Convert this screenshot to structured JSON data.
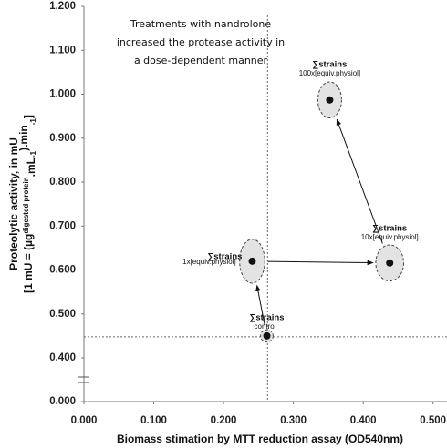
{
  "chart_data": {
    "type": "scatter",
    "xlabel": "Biomass stimation by MTT reduction assay (OD540nm)",
    "ylabel": [
      "Proteolytic activity, in mU",
      [
        "[1 mU = (µg",
        "digested protein",
        ".mL",
        "-1",
        ").min",
        "-1",
        "]"
      ]
    ],
    "annotation": [
      "Treatments with nandrolone",
      "increased the protease activity in",
      "a dose-dependent manner"
    ],
    "xlim": [
      0,
      0.52
    ],
    "ylim": [
      0,
      1.2
    ],
    "y_break": [
      0,
      0.4
    ],
    "xticks": [
      {
        "value": 0,
        "label": "0.000"
      },
      {
        "value": 0.1,
        "label": "0.100"
      },
      {
        "value": 0.2,
        "label": "0.200"
      },
      {
        "value": 0.3,
        "label": "0.300"
      },
      {
        "value": 0.4,
        "label": "0.400"
      },
      {
        "value": 0.5,
        "label": "0.500"
      }
    ],
    "yticks": [
      {
        "value": 0,
        "label": "0.000"
      },
      {
        "value": 0.4,
        "label": "0.400"
      },
      {
        "value": 0.5,
        "label": "0.500"
      },
      {
        "value": 0.6,
        "label": "0.600"
      },
      {
        "value": 0.7,
        "label": "0.700"
      },
      {
        "value": 0.8,
        "label": "0.800"
      },
      {
        "value": 0.9,
        "label": "0.900"
      },
      {
        "value": 1.0,
        "label": "1.000"
      },
      {
        "value": 1.1,
        "label": "1.100"
      },
      {
        "value": 1.2,
        "label": "1.200"
      }
    ],
    "ref_x": 0.263,
    "ref_y": 0.448,
    "points": [
      {
        "label": "∑strains",
        "sublabel": "control",
        "x": 0.262,
        "y": 0.45,
        "x_err": 0.009,
        "y_err": 0.014
      },
      {
        "label": "∑strains",
        "sublabel": "1x[equiv.physiol]",
        "x": 0.241,
        "y": 0.62,
        "x_err": 0.018,
        "y_err": 0.05
      },
      {
        "label": "∑strains",
        "sublabel": "10x[equiv.physiol]",
        "x": 0.438,
        "y": 0.616,
        "x_err": 0.02,
        "y_err": 0.041
      },
      {
        "label": "∑strains",
        "sublabel": "100x[equiv.physiol]",
        "x": 0.352,
        "y": 0.987,
        "x_err": 0.017,
        "y_err": 0.041
      }
    ],
    "ellipse_color": "#e3e3e3",
    "point_color": "#111111"
  }
}
